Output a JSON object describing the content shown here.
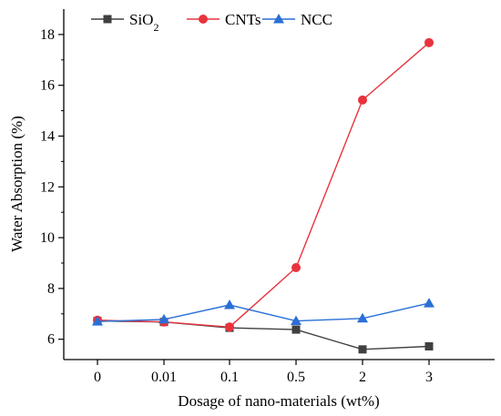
{
  "chart_data": {
    "type": "line",
    "xlabel": "Dosage of nano-materials (wt%)",
    "ylabel": "Water Absorption (%)",
    "categories": [
      "0",
      "0.01",
      "0.1",
      "0.5",
      "2",
      "3"
    ],
    "ylim": [
      5.2,
      19.0
    ],
    "yticks": [
      6,
      8,
      10,
      12,
      14,
      16,
      18
    ],
    "grid": false,
    "legend_position": "top-left",
    "series": [
      {
        "name_base": "SiO",
        "name_sub": "2",
        "marker": "square",
        "color": "#404040",
        "values": [
          6.72,
          6.68,
          6.45,
          6.38,
          5.6,
          5.72
        ]
      },
      {
        "name": "CNTs",
        "marker": "circle",
        "color": "#e8333d",
        "values": [
          6.75,
          6.68,
          6.48,
          8.82,
          15.42,
          17.68
        ]
      },
      {
        "name": "NCC",
        "marker": "triangle",
        "color": "#2a6fd6",
        "values": [
          6.7,
          6.78,
          7.35,
          6.72,
          6.82,
          7.42
        ]
      }
    ]
  }
}
